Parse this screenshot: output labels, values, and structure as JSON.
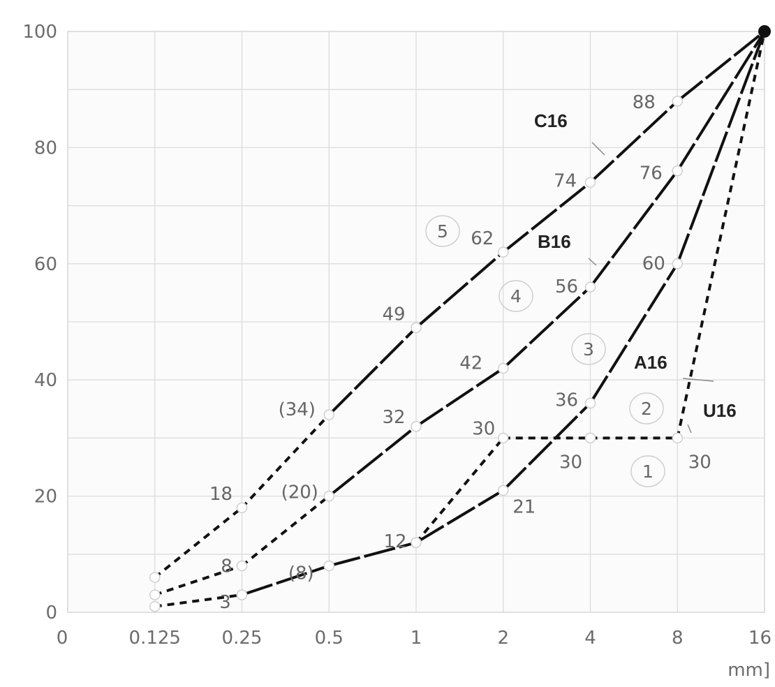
{
  "chart_data": {
    "type": "line",
    "title": "",
    "xlabel": "mm]",
    "ylabel": "",
    "x_scale": "log2 (sieve sizes)",
    "x_ticks": [
      "0",
      "0.125",
      "0.25",
      "0.5",
      "1",
      "2",
      "4",
      "8",
      "16"
    ],
    "y_ticks": [
      "0",
      "20",
      "40",
      "60",
      "80",
      "100"
    ],
    "ylim": [
      0,
      100
    ],
    "grid": true,
    "legend": "none (curves labelled directly)",
    "series": [
      {
        "name": "C16",
        "points": [
          [
            0.125,
            6
          ],
          [
            0.25,
            18
          ],
          [
            0.5,
            34
          ],
          [
            1,
            49
          ],
          [
            2,
            62
          ],
          [
            4,
            74
          ],
          [
            8,
            88
          ],
          [
            16,
            100
          ]
        ],
        "labels": [
          "",
          "18",
          "(34)",
          "49",
          "62",
          "74",
          "88",
          ""
        ],
        "styles": [
          "dashed",
          "dashed",
          "solid",
          "solid",
          "solid",
          "solid",
          "solid"
        ]
      },
      {
        "name": "B16",
        "points": [
          [
            0.125,
            3
          ],
          [
            0.25,
            8
          ],
          [
            0.5,
            20
          ],
          [
            1,
            32
          ],
          [
            2,
            42
          ],
          [
            4,
            56
          ],
          [
            8,
            76
          ],
          [
            16,
            100
          ]
        ],
        "labels": [
          "",
          "8",
          "(20)",
          "32",
          "42",
          "56",
          "76",
          ""
        ],
        "styles": [
          "dashed",
          "dashed",
          "solid",
          "solid",
          "solid",
          "solid",
          "solid"
        ]
      },
      {
        "name": "A16",
        "points": [
          [
            0.125,
            1
          ],
          [
            0.25,
            3
          ],
          [
            0.5,
            8
          ],
          [
            1,
            12
          ],
          [
            2,
            21
          ],
          [
            4,
            36
          ],
          [
            8,
            60
          ],
          [
            16,
            100
          ]
        ],
        "labels": [
          "",
          "3",
          "(8)",
          "12",
          "21",
          "36",
          "60",
          ""
        ],
        "styles": [
          "dashed",
          "solid",
          "solid",
          "solid",
          "solid",
          "solid",
          "solid"
        ]
      },
      {
        "name": "U16",
        "points": [
          [
            1,
            12
          ],
          [
            2,
            30
          ],
          [
            4,
            30
          ],
          [
            8,
            30
          ],
          [
            16,
            100
          ]
        ],
        "labels": [
          "",
          "30",
          "30",
          "30",
          ""
        ],
        "styles": [
          "dashed",
          "dashed",
          "dashed",
          "dashed"
        ]
      }
    ],
    "zones": [
      "1",
      "2",
      "3",
      "4",
      "5"
    ],
    "colors": {
      "line": "#111111",
      "grid": "#dcdcdc",
      "tick": "#6b6b6b",
      "label": "#666666"
    }
  }
}
